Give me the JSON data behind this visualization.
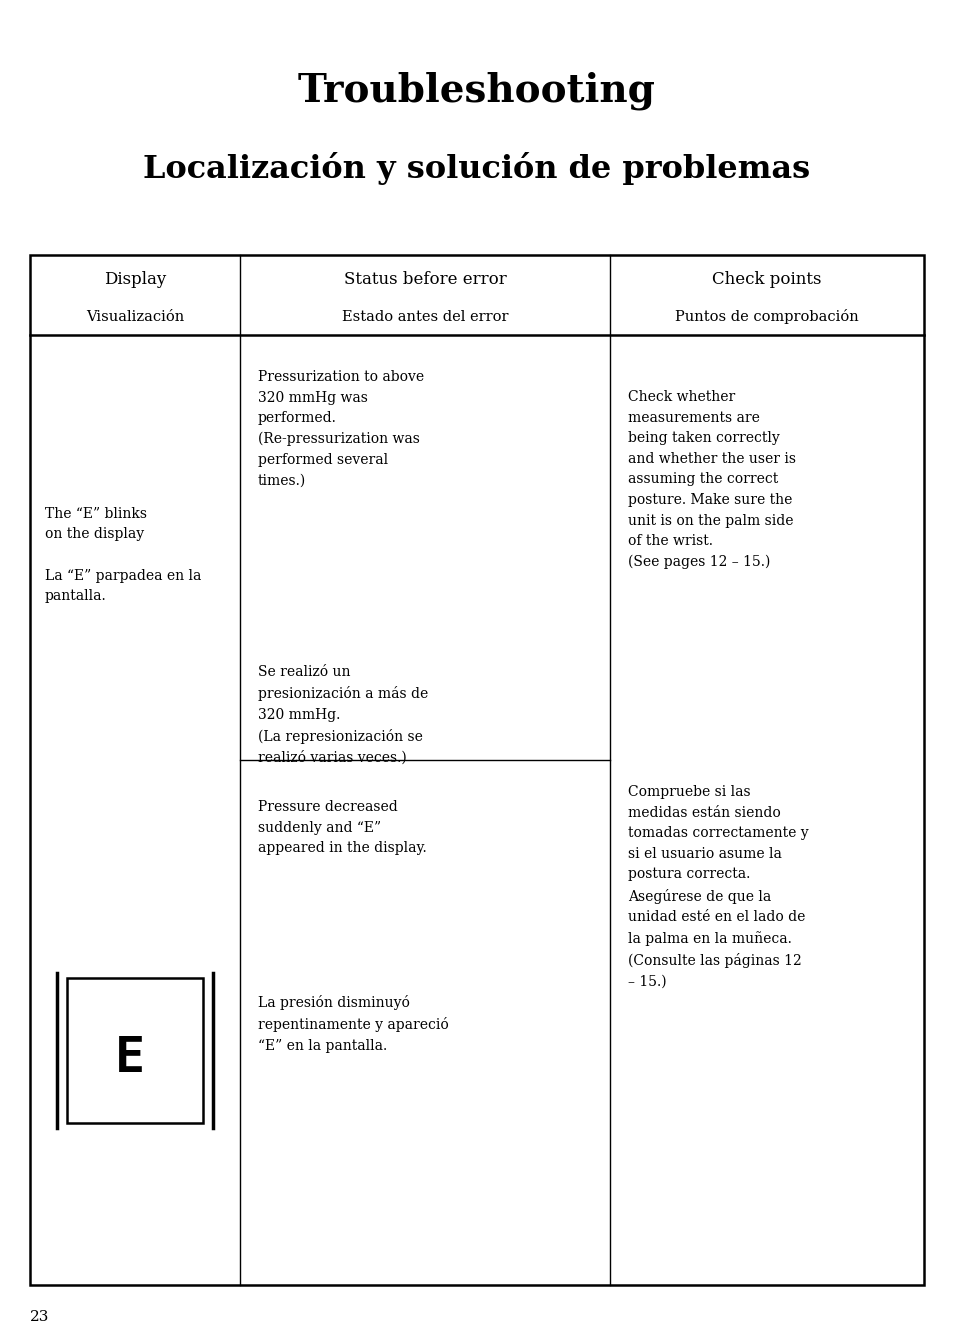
{
  "title_line1": "Troubleshooting",
  "title_line2": "Localización y solución de problemas",
  "bg_color": "#ffffff",
  "text_color": "#000000",
  "col_headers": [
    [
      "Display",
      "Visualización"
    ],
    [
      "Status before error",
      "Estado antes del error"
    ],
    [
      "Check points",
      "Puntos de comprobación"
    ]
  ],
  "page_number": "23",
  "col1_text_upper": "The “E” blinks\non the display\n\nLa “E” parpadea en la\npantalla.",
  "col2_upper_en": "Pressurization to above\n320 mmHg was\nperformed.\n(Re-pressurization was\nperformed several\ntimes.)",
  "col2_upper_es": "Se realizó un\npresionización a más de\n320 mmHg.\n(La represionización se\nrealizó varias veces.)",
  "col3_en": "Check whether\nmeasurements are\nbeing taken correctly\nand whether the user is\nassuming the correct\nposture. Make sure the\nunit is on the palm side\nof the wrist.\n(See pages 12 – 15.)",
  "col3_es": "Compruebe si las\nmedidas están siendo\ntomadas correctamente y\nsi el usuario asume la\npostura correcta.\nAsegúrese de que la\nunidad esté en el lado de\nla palma en la muñeca.\n(Consulte las páginas 12\n– 15.)",
  "col2_lower_en": "Pressure decreased\nsuddenly and “E”\nappeared in the display.",
  "col2_lower_es": "La presión disminuyó\nrepentinamente y apareció\n“E” en la pantalla.",
  "font_size_title1": 28,
  "font_size_title2": 23,
  "font_size_header_en": 12,
  "font_size_header_es": 10.5,
  "font_size_body": 10
}
